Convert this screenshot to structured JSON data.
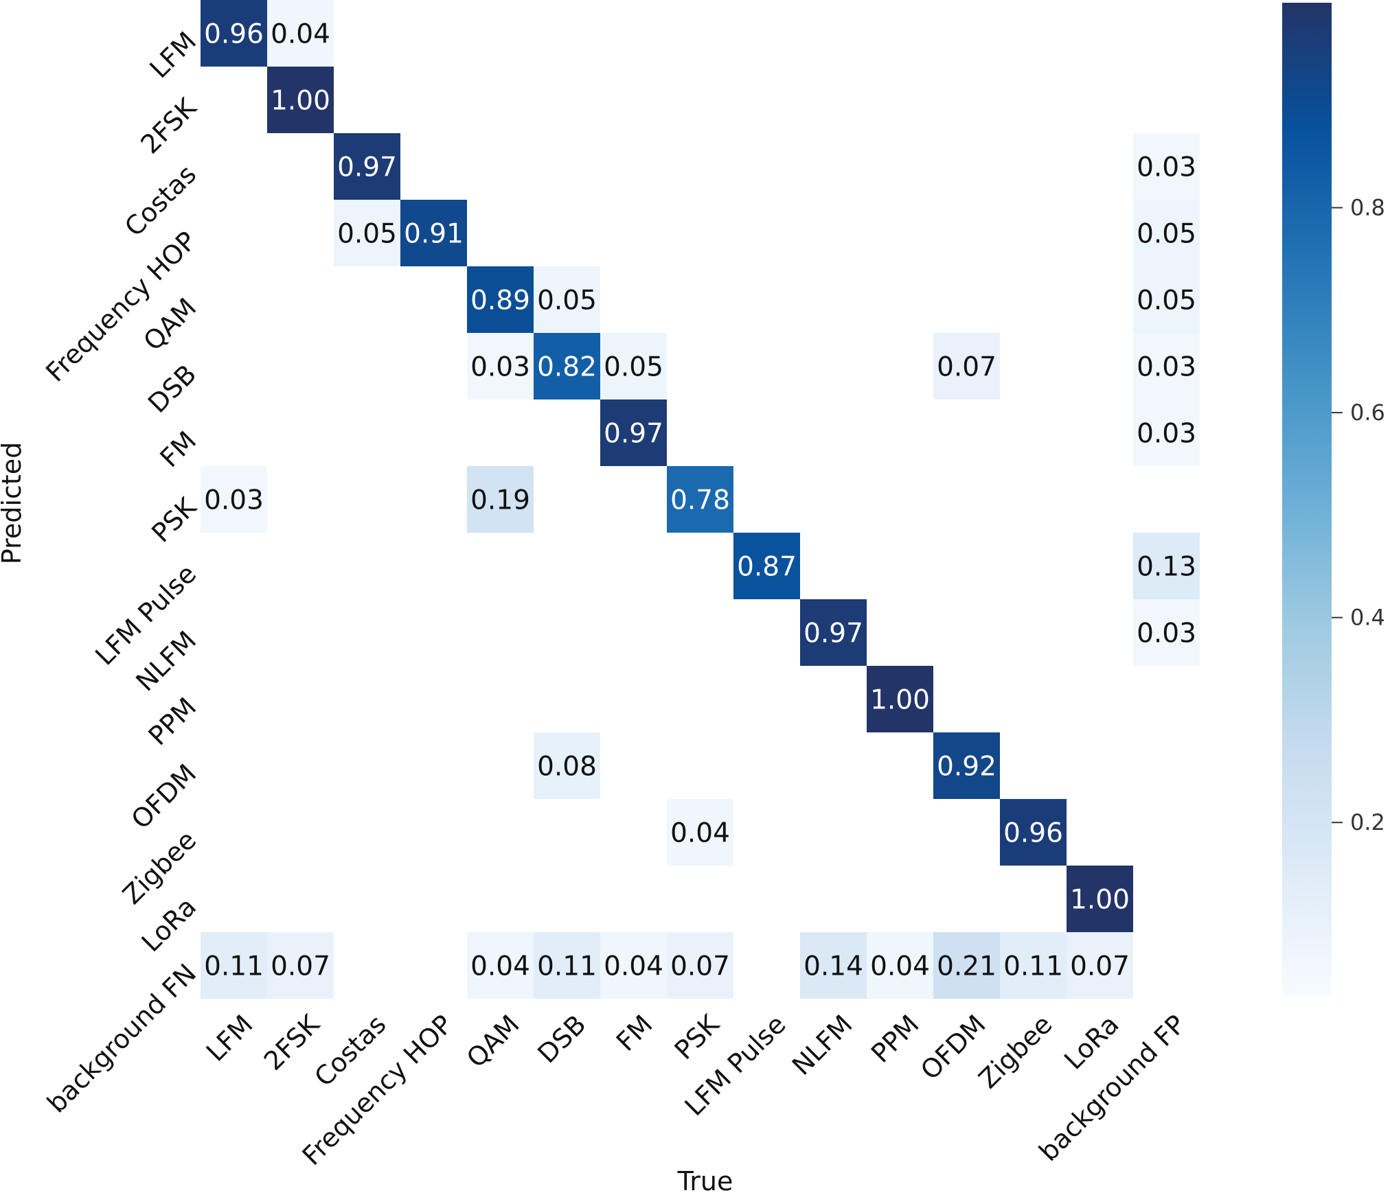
{
  "chart_data": {
    "type": "heatmap",
    "title": "",
    "xlabel": "True",
    "ylabel": "Predicted",
    "x_categories": [
      "LFM",
      "2FSK",
      "Costas",
      "Frequency HOP",
      "QAM",
      "DSB",
      "FM",
      "PSK",
      "LFM Pulse",
      "NLFM",
      "PPM",
      "OFDM",
      "Zigbee",
      "LoRa",
      "background FP"
    ],
    "y_categories": [
      "LFM",
      "2FSK",
      "Costas",
      "Frequency HOP",
      "QAM",
      "DSB",
      "FM",
      "PSK",
      "LFM Pulse",
      "NLFM",
      "PPM",
      "OFDM",
      "Zigbee",
      "LoRa",
      "background FN"
    ],
    "matrix": [
      [
        0.96,
        0.04,
        null,
        null,
        null,
        null,
        null,
        null,
        null,
        null,
        null,
        null,
        null,
        null,
        null
      ],
      [
        null,
        1.0,
        null,
        null,
        null,
        null,
        null,
        null,
        null,
        null,
        null,
        null,
        null,
        null,
        null
      ],
      [
        null,
        null,
        0.97,
        null,
        null,
        null,
        null,
        null,
        null,
        null,
        null,
        null,
        null,
        null,
        0.03
      ],
      [
        null,
        null,
        0.05,
        0.91,
        null,
        null,
        null,
        null,
        null,
        null,
        null,
        null,
        null,
        null,
        0.05
      ],
      [
        null,
        null,
        null,
        null,
        0.89,
        0.05,
        null,
        null,
        null,
        null,
        null,
        null,
        null,
        null,
        0.05
      ],
      [
        null,
        null,
        null,
        null,
        0.03,
        0.82,
        0.05,
        null,
        null,
        null,
        null,
        0.07,
        null,
        null,
        0.03
      ],
      [
        null,
        null,
        null,
        null,
        null,
        null,
        0.97,
        null,
        null,
        null,
        null,
        null,
        null,
        null,
        0.03
      ],
      [
        0.03,
        null,
        null,
        null,
        0.19,
        null,
        null,
        0.78,
        null,
        null,
        null,
        null,
        null,
        null,
        null
      ],
      [
        null,
        null,
        null,
        null,
        null,
        null,
        null,
        null,
        0.87,
        null,
        null,
        null,
        null,
        null,
        0.13
      ],
      [
        null,
        null,
        null,
        null,
        null,
        null,
        null,
        null,
        null,
        0.97,
        null,
        null,
        null,
        null,
        0.03
      ],
      [
        null,
        null,
        null,
        null,
        null,
        null,
        null,
        null,
        null,
        null,
        1.0,
        null,
        null,
        null,
        null
      ],
      [
        null,
        null,
        null,
        null,
        null,
        0.08,
        null,
        null,
        null,
        null,
        null,
        0.92,
        null,
        null,
        null
      ],
      [
        null,
        null,
        null,
        null,
        null,
        null,
        null,
        0.04,
        null,
        null,
        null,
        null,
        0.96,
        null,
        null
      ],
      [
        null,
        null,
        null,
        null,
        null,
        null,
        null,
        null,
        null,
        null,
        null,
        null,
        null,
        1.0,
        null
      ],
      [
        0.11,
        0.07,
        null,
        null,
        0.04,
        0.11,
        0.04,
        0.07,
        null,
        0.14,
        0.04,
        0.21,
        0.11,
        0.07,
        null
      ]
    ],
    "colormap": "Blues",
    "value_range": [
      0.0,
      1.0
    ],
    "colorbar": {
      "ticks": [
        0.2,
        0.4,
        0.6,
        0.8
      ],
      "tick_labels": [
        "0.2",
        "0.4",
        "0.6",
        "0.8"
      ]
    },
    "grid": false,
    "legend": "none"
  }
}
